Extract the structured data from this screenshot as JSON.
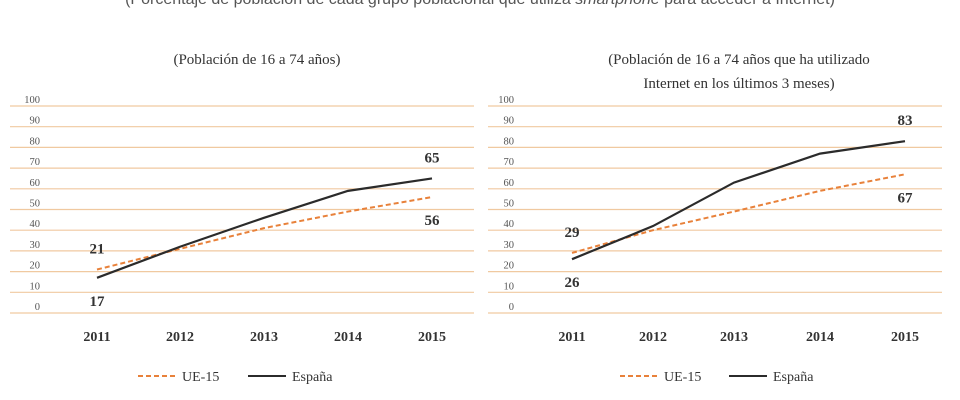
{
  "header": {
    "prefix": "(Porcentaje de población de cada grupo poblacional que utiliza ",
    "emphasis": "smartphone",
    "suffix": " para acceder a Internet)"
  },
  "colors": {
    "ue15": "#e8813a",
    "espana": "#2b2b2b",
    "grid": "#f0c9a0",
    "text": "#333333"
  },
  "chart_data": [
    {
      "type": "line",
      "title": "(Población de 16 a 74 años)",
      "subtitle": "",
      "categories": [
        "2011",
        "2012",
        "2013",
        "2014",
        "2015"
      ],
      "yticks": [
        "0",
        "10",
        "20",
        "30",
        "40",
        "50",
        "60",
        "70",
        "80",
        "90",
        "100"
      ],
      "ylim": [
        0,
        100
      ],
      "grid": true,
      "legend_position": "bottom",
      "series": [
        {
          "name": "UE-15",
          "style": "dashed",
          "values": [
            21,
            31,
            41,
            49,
            56
          ]
        },
        {
          "name": "España",
          "style": "solid",
          "values": [
            17,
            32,
            46,
            59,
            65
          ]
        }
      ],
      "annotations": [
        {
          "series": "UE-15",
          "index": 0,
          "text": "21",
          "pos": "above"
        },
        {
          "series": "España",
          "index": 0,
          "text": "17",
          "pos": "below"
        },
        {
          "series": "España",
          "index": 4,
          "text": "65",
          "pos": "above"
        },
        {
          "series": "UE-15",
          "index": 4,
          "text": "56",
          "pos": "below"
        }
      ]
    },
    {
      "type": "line",
      "title": "(Población de 16 a 74 años que ha utilizado",
      "subtitle": "Internet en los últimos 3 meses)",
      "categories": [
        "2011",
        "2012",
        "2013",
        "2014",
        "2015"
      ],
      "yticks": [
        "0",
        "10",
        "20",
        "30",
        "40",
        "50",
        "60",
        "70",
        "80",
        "90",
        "100"
      ],
      "ylim": [
        0,
        100
      ],
      "grid": true,
      "legend_position": "bottom",
      "series": [
        {
          "name": "UE-15",
          "style": "dashed",
          "values": [
            29,
            40,
            49,
            59,
            67
          ]
        },
        {
          "name": "España",
          "style": "solid",
          "values": [
            26,
            42,
            63,
            77,
            83
          ]
        }
      ],
      "annotations": [
        {
          "series": "UE-15",
          "index": 0,
          "text": "29",
          "pos": "above"
        },
        {
          "series": "España",
          "index": 0,
          "text": "26",
          "pos": "below"
        },
        {
          "series": "España",
          "index": 4,
          "text": "83",
          "pos": "above"
        },
        {
          "series": "UE-15",
          "index": 4,
          "text": "67",
          "pos": "below"
        }
      ]
    }
  ]
}
